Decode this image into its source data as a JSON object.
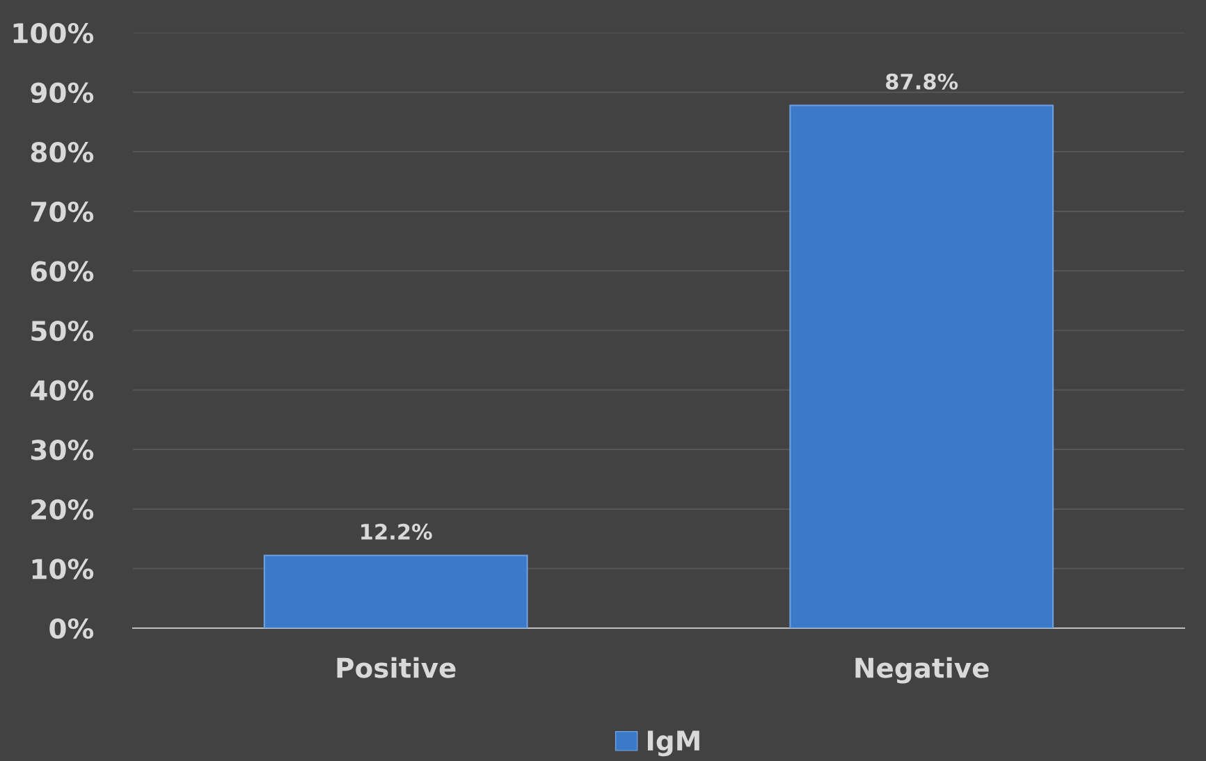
{
  "chart_data": {
    "type": "bar",
    "categories": [
      "Positive",
      "Negative"
    ],
    "series": [
      {
        "name": "IgM",
        "color": "#3b7ac8",
        "values": [
          12.2,
          87.8
        ]
      }
    ],
    "value_labels": [
      "12.2%",
      "87.8%"
    ],
    "ylim": [
      0,
      100
    ],
    "yticks": [
      {
        "value": 0,
        "label": "0%"
      },
      {
        "value": 10,
        "label": "10%"
      },
      {
        "value": 20,
        "label": "20%"
      },
      {
        "value": 30,
        "label": "30%"
      },
      {
        "value": 40,
        "label": "40%"
      },
      {
        "value": 50,
        "label": "50%"
      },
      {
        "value": 60,
        "label": "60%"
      },
      {
        "value": 70,
        "label": "70%"
      },
      {
        "value": 80,
        "label": "80%"
      },
      {
        "value": 90,
        "label": "90%"
      },
      {
        "value": 100,
        "label": "100%"
      }
    ],
    "grid": "y",
    "legend": "bottom"
  }
}
